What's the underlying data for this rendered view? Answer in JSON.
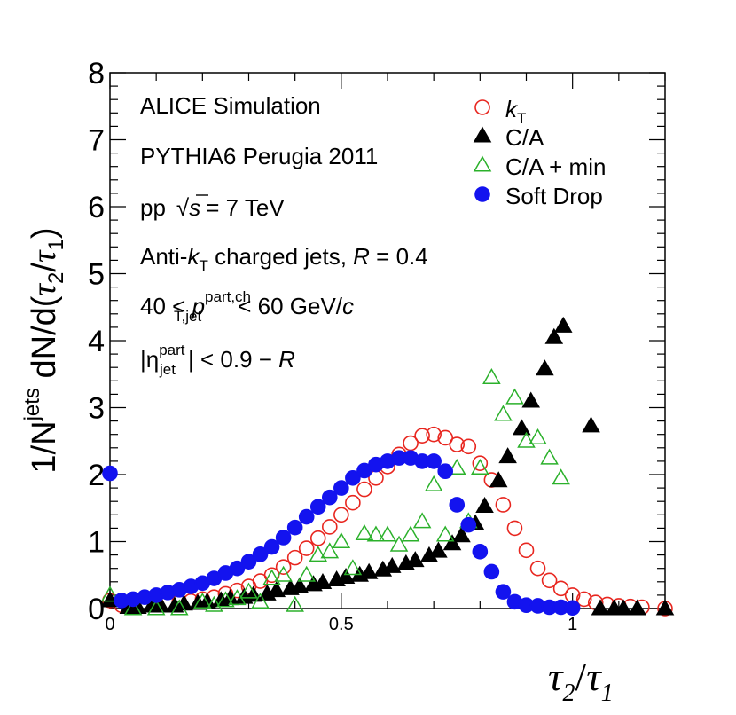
{
  "chart_data": {
    "type": "scatter",
    "xlabel": "τ2/τ1",
    "ylabel": "1/N^jets dN/d(τ2/τ1)",
    "xlim": [
      0,
      1.2
    ],
    "ylim": [
      0,
      8
    ],
    "x_ticks": [
      "0",
      "0.5",
      "1"
    ],
    "y_ticks": [
      "0",
      "1",
      "2",
      "3",
      "4",
      "5",
      "6",
      "7",
      "8"
    ],
    "annotations": {
      "line1": "ALICE Simulation",
      "line2": "PYTHIA6 Perugia 2011",
      "line3_pre": "pp",
      "line3_sqrt": "√",
      "line3_s": "s",
      "line3_post": "= 7 TeV",
      "line4_pre": "Anti-",
      "line4_k": "k",
      "line4_sub": "T",
      "line4_mid": " charged jets, ",
      "line4_R": "R",
      "line4_post": " = 0.4",
      "line5_pre": "40 < ",
      "line5_p": "p",
      "line5_sup": "part,ch",
      "line5_sub": "T,jet",
      "line5_post": " < 60 GeV/",
      "line5_c": "c",
      "line6_pre": "|η",
      "line6_sup": "part",
      "line6_sub": "jet",
      "line6_post": "| < 0.9 − ",
      "line6_R": "R"
    },
    "axis_text": {
      "y_main": "1/N",
      "y_sup": "jets",
      "y_rest": " dN/d(",
      "tau": "τ",
      "sub2": "2",
      "sub1": "1",
      "slash": "/",
      "close": ")"
    },
    "series": [
      {
        "name": "kT",
        "legend_main": "k",
        "legend_sub": "T",
        "marker": "open-circle",
        "color": "#e8261f",
        "x": [
          0.0,
          0.025,
          0.05,
          0.075,
          0.1,
          0.125,
          0.15,
          0.175,
          0.2,
          0.225,
          0.25,
          0.275,
          0.3,
          0.325,
          0.35,
          0.375,
          0.4,
          0.425,
          0.45,
          0.475,
          0.5,
          0.525,
          0.55,
          0.575,
          0.6,
          0.625,
          0.65,
          0.675,
          0.7,
          0.725,
          0.75,
          0.775,
          0.8,
          0.825,
          0.85,
          0.875,
          0.9,
          0.925,
          0.95,
          0.975,
          1.0,
          1.025,
          1.05,
          1.075,
          1.1,
          1.125,
          1.15,
          1.2
        ],
        "values": [
          0.12,
          0.05,
          0.05,
          0.06,
          0.07,
          0.08,
          0.1,
          0.11,
          0.14,
          0.17,
          0.22,
          0.27,
          0.33,
          0.41,
          0.5,
          0.62,
          0.76,
          0.9,
          1.05,
          1.22,
          1.4,
          1.58,
          1.78,
          1.95,
          2.12,
          2.3,
          2.47,
          2.58,
          2.6,
          2.55,
          2.45,
          2.42,
          2.17,
          1.92,
          1.55,
          1.2,
          0.87,
          0.6,
          0.42,
          0.3,
          0.2,
          0.14,
          0.09,
          0.06,
          0.04,
          0.03,
          0.02,
          0.0
        ]
      },
      {
        "name": "C/A",
        "legend_main": "C/A",
        "legend_sub": "",
        "marker": "filled-triangle",
        "color": "#000000",
        "x": [
          0.0,
          0.04,
          0.06,
          0.09,
          0.11,
          0.14,
          0.16,
          0.19,
          0.21,
          0.24,
          0.26,
          0.29,
          0.31,
          0.34,
          0.36,
          0.39,
          0.41,
          0.44,
          0.46,
          0.49,
          0.51,
          0.54,
          0.56,
          0.59,
          0.61,
          0.64,
          0.66,
          0.69,
          0.71,
          0.74,
          0.76,
          0.79,
          0.81,
          0.84,
          0.86,
          0.89,
          0.91,
          0.94,
          0.96,
          0.98,
          1.04,
          1.06,
          1.09,
          1.11,
          1.14,
          1.2
        ],
        "values": [
          0.12,
          0.02,
          0.02,
          0.04,
          0.04,
          0.04,
          0.07,
          0.08,
          0.1,
          0.12,
          0.15,
          0.17,
          0.2,
          0.22,
          0.27,
          0.3,
          0.33,
          0.36,
          0.39,
          0.43,
          0.47,
          0.5,
          0.54,
          0.58,
          0.63,
          0.67,
          0.72,
          0.79,
          0.86,
          0.97,
          1.09,
          1.27,
          1.53,
          1.91,
          2.27,
          2.69,
          3.1,
          3.58,
          4.05,
          4.22,
          2.73,
          0.0,
          0.0,
          0.0,
          0.0,
          0.0
        ]
      },
      {
        "name": "C/A + min",
        "legend_main": "C/A + min",
        "legend_sub": "",
        "marker": "open-triangle",
        "color": "#2bb12b",
        "x": [
          0.0,
          0.05,
          0.1,
          0.15,
          0.2,
          0.225,
          0.25,
          0.275,
          0.3,
          0.325,
          0.35,
          0.375,
          0.4,
          0.425,
          0.45,
          0.475,
          0.5,
          0.525,
          0.55,
          0.575,
          0.6,
          0.625,
          0.65,
          0.675,
          0.7,
          0.725,
          0.75,
          0.775,
          0.8,
          0.825,
          0.85,
          0.875,
          0.9,
          0.925,
          0.95,
          0.975
        ],
        "values": [
          0.2,
          0.0,
          0.0,
          0.0,
          0.1,
          0.05,
          0.12,
          0.15,
          0.25,
          0.1,
          0.45,
          0.5,
          0.05,
          0.5,
          0.8,
          0.85,
          1.0,
          0.6,
          1.12,
          1.1,
          1.1,
          0.95,
          1.1,
          1.3,
          1.85,
          1.1,
          2.1,
          1.3,
          2.1,
          3.45,
          2.9,
          3.15,
          2.5,
          2.55,
          2.25,
          1.95
        ]
      },
      {
        "name": "Soft Drop",
        "legend_main": "Soft Drop",
        "legend_sub": "",
        "marker": "filled-circle",
        "color": "#1313ef",
        "x": [
          0.0,
          0.025,
          0.05,
          0.075,
          0.1,
          0.125,
          0.15,
          0.175,
          0.2,
          0.225,
          0.25,
          0.275,
          0.3,
          0.325,
          0.35,
          0.375,
          0.4,
          0.425,
          0.45,
          0.475,
          0.5,
          0.525,
          0.55,
          0.575,
          0.6,
          0.625,
          0.65,
          0.675,
          0.7,
          0.725,
          0.75,
          0.775,
          0.8,
          0.825,
          0.85,
          0.875,
          0.9,
          0.925,
          0.95,
          0.975,
          1.0
        ],
        "values": [
          2.02,
          0.12,
          0.14,
          0.17,
          0.2,
          0.24,
          0.28,
          0.33,
          0.38,
          0.45,
          0.53,
          0.6,
          0.7,
          0.81,
          0.92,
          1.06,
          1.21,
          1.37,
          1.52,
          1.66,
          1.8,
          1.95,
          2.06,
          2.15,
          2.2,
          2.25,
          2.25,
          2.2,
          2.2,
          2.05,
          1.55,
          1.25,
          0.85,
          0.55,
          0.25,
          0.1,
          0.05,
          0.04,
          0.02,
          0.02,
          0.01
        ]
      }
    ]
  }
}
